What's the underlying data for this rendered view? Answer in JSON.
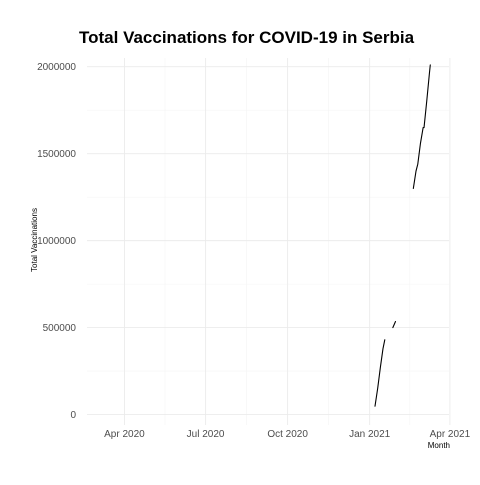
{
  "chart_data": {
    "type": "line",
    "title": "Total Vaccinations for COVID-19 in Serbia",
    "xlabel": "Month",
    "ylabel": "Total Vaccinations",
    "grid": true,
    "legend": "none",
    "xlim": [
      "2020-02-19",
      "2021-03-31"
    ],
    "ylim": [
      -60000,
      2050000
    ],
    "x_major_ticks": [
      {
        "date": "2020-04-01",
        "label": "Apr 2020"
      },
      {
        "date": "2020-07-01",
        "label": "Jul 2020"
      },
      {
        "date": "2020-10-01",
        "label": "Oct 2020"
      },
      {
        "date": "2021-01-01",
        "label": "Jan 2021"
      },
      {
        "date": "2021-04-01",
        "label": "Apr 2021"
      }
    ],
    "y_major_ticks": [
      {
        "value": 0,
        "label": "0"
      },
      {
        "value": 500000,
        "label": "500000"
      },
      {
        "value": 1000000,
        "label": "1000000"
      },
      {
        "value": 1500000,
        "label": "1500000"
      },
      {
        "value": 2000000,
        "label": "2000000"
      }
    ],
    "series": [
      {
        "segments": [
          [
            {
              "x": "2021-01-07",
              "y": 48000
            },
            {
              "x": "2021-01-10",
              "y": 150000
            },
            {
              "x": "2021-01-13",
              "y": 270000
            },
            {
              "x": "2021-01-16",
              "y": 380000
            },
            {
              "x": "2021-01-18",
              "y": 430000
            }
          ],
          [
            {
              "x": "2021-01-27",
              "y": 500000
            },
            {
              "x": "2021-01-30",
              "y": 535000
            }
          ],
          [
            {
              "x": "2021-02-19",
              "y": 1300000
            },
            {
              "x": "2021-02-22",
              "y": 1400000
            },
            {
              "x": "2021-02-24",
              "y": 1440000
            },
            {
              "x": "2021-02-27",
              "y": 1560000
            },
            {
              "x": "2021-03-02",
              "y": 1650000
            },
            {
              "x": "2021-03-03",
              "y": 1650000
            },
            {
              "x": "2021-03-06",
              "y": 1800000
            },
            {
              "x": "2021-03-09",
              "y": 1960000
            },
            {
              "x": "2021-03-10",
              "y": 2010000
            }
          ]
        ]
      }
    ]
  }
}
